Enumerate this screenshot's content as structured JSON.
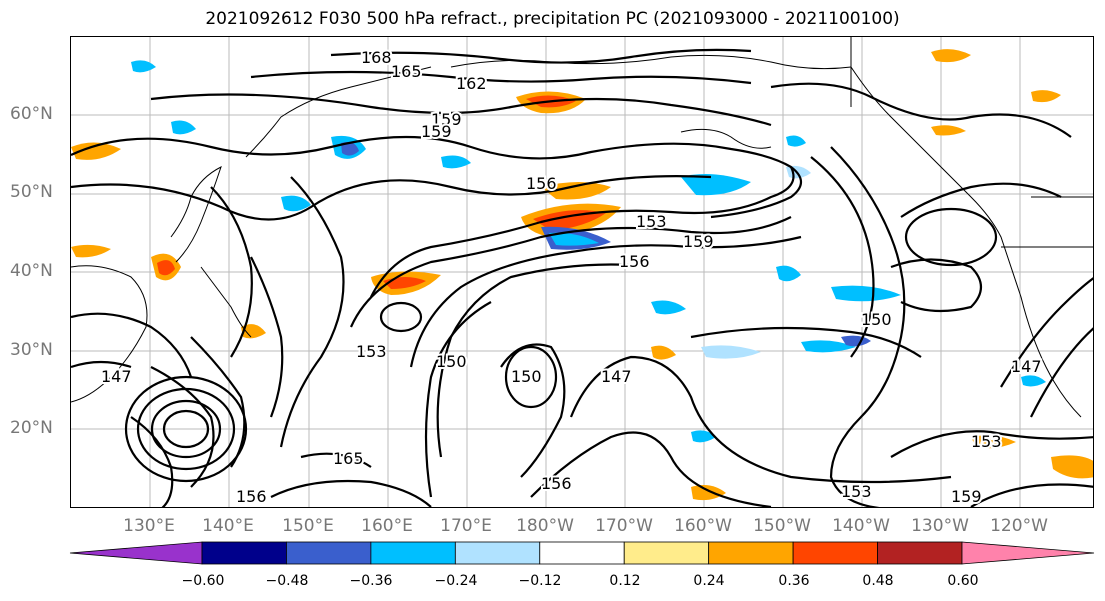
{
  "title": "2021092612 F030 500 hPa refract., precipitation PC (2021093000 - 2021100100)",
  "lat_labels": [
    "60°N",
    "50°N",
    "40°N",
    "30°N",
    "20°N"
  ],
  "lon_labels": [
    "130°E",
    "140°E",
    "150°E",
    "160°E",
    "170°E",
    "180°W",
    "170°W",
    "160°W",
    "150°W",
    "140°W",
    "130°W",
    "120°W"
  ],
  "contour_labels": [
    "168",
    "165",
    "162",
    "159",
    "156",
    "153",
    "150",
    "147",
    "159",
    "156",
    "153",
    "150",
    "147",
    "165",
    "156",
    "159",
    "153",
    "150",
    "156",
    "153",
    "159",
    "147"
  ],
  "colorbar": {
    "ticks": [
      "−0.60",
      "−0.48",
      "−0.36",
      "−0.24",
      "−0.12",
      "0.12",
      "0.24",
      "0.36",
      "0.48",
      "0.60"
    ],
    "colors": [
      "#9932cc",
      "#00008b",
      "#3a5fcd",
      "#00bfff",
      "#b0e2ff",
      "#ffffff",
      "#ffec8b",
      "#ffa500",
      "#ff4500",
      "#b22222",
      "#ff82ab"
    ]
  }
}
